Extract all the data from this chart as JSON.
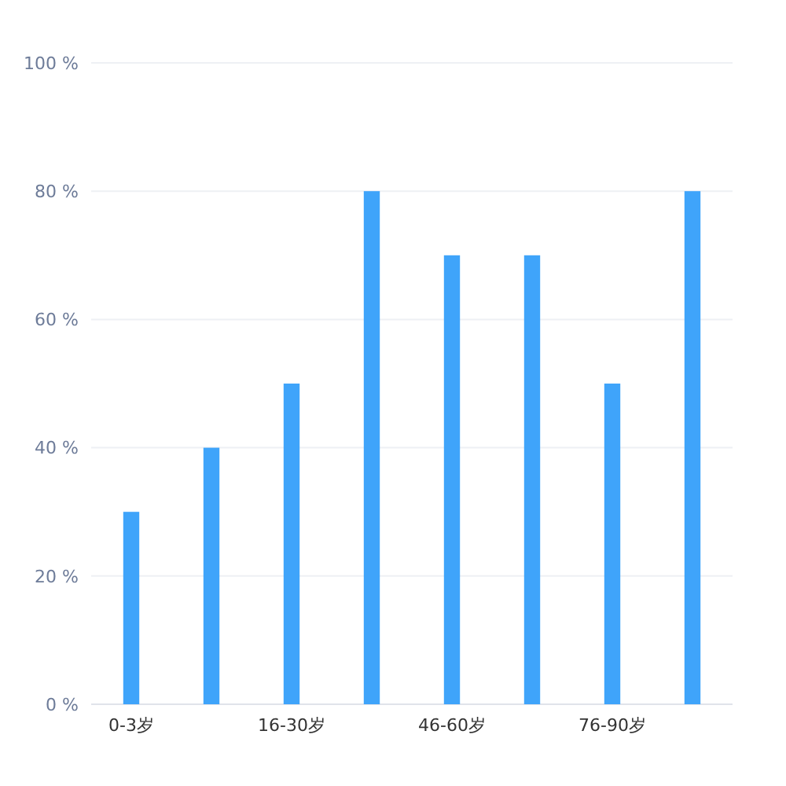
{
  "chart_data": {
    "type": "bar",
    "categories": [
      "0-3岁",
      null,
      "16-30岁",
      null,
      "46-60岁",
      null,
      "76-90岁",
      null
    ],
    "values": [
      30,
      40,
      50,
      80,
      70,
      70,
      50,
      80
    ],
    "color": "#3fa4fa",
    "ylim": [
      0,
      100
    ],
    "yticks": [
      {
        "value": 0,
        "label": "0 %"
      },
      {
        "value": 20,
        "label": "20 %"
      },
      {
        "value": 40,
        "label": "40 %"
      },
      {
        "value": 60,
        "label": "60 %"
      },
      {
        "value": 80,
        "label": "80 %"
      },
      {
        "value": 100,
        "label": "100 %"
      }
    ],
    "grid": "y"
  }
}
